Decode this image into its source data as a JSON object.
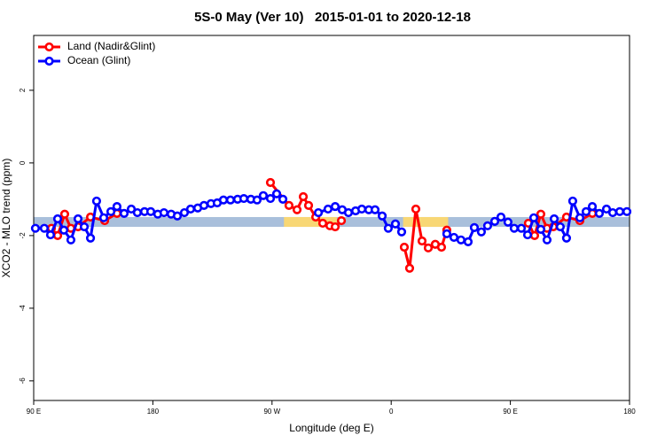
{
  "chart_data": {
    "type": "line",
    "title": "5S-0 May (Ver 10)   2015-01-01 to 2020-12-18",
    "x_label": "Longitude (deg E)",
    "y_label": "XCO2 - MLO trend (ppm)",
    "xlim": [
      90,
      540
    ],
    "ylim": [
      -6.54,
      3.51
    ],
    "xticks": [
      {
        "value": 90,
        "label": "90 E"
      },
      {
        "value": 180,
        "label": "180"
      },
      {
        "value": 270,
        "label": "90 W"
      },
      {
        "value": 360,
        "label": "0"
      },
      {
        "value": 450,
        "label": "90 E"
      },
      {
        "value": 540,
        "label": "180"
      }
    ],
    "yticks": [
      -6,
      -4,
      -2,
      0,
      2
    ],
    "legend": "top-left",
    "band": {
      "ylim": [
        -1.76,
        -1.49
      ],
      "segments": [
        {
          "x": [
            90,
            540
          ],
          "color": "#a9bfdb"
        },
        {
          "x": [
            279,
            319
          ],
          "color": "#f8d775"
        },
        {
          "x": [
            369,
            403
          ],
          "color": "#f8d775"
        }
      ]
    },
    "series": [
      {
        "name": "Land (Nadir&Glint)",
        "color": "#ff0000",
        "x": [
          103.4,
          108.1,
          113.4,
          118.1,
          123.5,
          132.9,
          143.6,
          152.9,
          200,
          268.8,
          282.8,
          288.9,
          293.6,
          297.6,
          303,
          308.3,
          313.7,
          317.7,
          322.4,
          345,
          369.9,
          373.9,
          378.6,
          383.3,
          388,
          393.3,
          398,
          402,
          430,
          463.6,
          468.3,
          473,
          477.7,
          482.4,
          492.4,
          502.5,
          511.9
        ],
        "values": [
          -1.8,
          -2.0,
          -1.41,
          -1.8,
          -1.76,
          -1.49,
          -1.59,
          -1.39,
          null,
          -0.54,
          -1.17,
          -1.29,
          -0.93,
          -1.17,
          -1.49,
          -1.66,
          -1.73,
          -1.76,
          -1.59,
          null,
          -2.32,
          -2.9,
          -1.27,
          -2.15,
          -2.34,
          -2.24,
          -2.32,
          -1.85,
          null,
          -1.66,
          -2.0,
          -1.41,
          -1.8,
          -1.76,
          -1.49,
          -1.59,
          -1.39
        ]
      },
      {
        "name": "Ocean (Glint)",
        "color": "#0000ff",
        "x": [
          91.3,
          98,
          102.7,
          108.1,
          112.8,
          118.1,
          123.5,
          128.2,
          132.9,
          137.5,
          142.9,
          148.3,
          152.9,
          158.3,
          163.7,
          168.3,
          173.7,
          178.4,
          183.7,
          188.4,
          193.8,
          198.5,
          203.8,
          208.5,
          213.9,
          218.6,
          223.9,
          228.6,
          233.3,
          238.6,
          244,
          248.7,
          254,
          258.7,
          263.4,
          268.8,
          273.5,
          278.2,
          291,
          305,
          312.3,
          317.7,
          323,
          327.7,
          333.1,
          337.8,
          343.1,
          347.8,
          353.2,
          357.8,
          363.2,
          367.9,
          385,
          402,
          407.4,
          412.7,
          418.1,
          422.8,
          428.1,
          432.8,
          438.2,
          442.9,
          448.2,
          452.9,
          458.3,
          463,
          467.7,
          473,
          477.7,
          483.1,
          487.7,
          492.4,
          497.1,
          502.5,
          507.2,
          511.9,
          517.2,
          522.6,
          527.3,
          532.6,
          538
        ],
        "values": [
          -1.8,
          -1.8,
          -1.98,
          -1.54,
          -1.85,
          -2.12,
          -1.54,
          -1.76,
          -2.07,
          -1.05,
          -1.51,
          -1.34,
          -1.2,
          -1.39,
          -1.27,
          -1.37,
          -1.34,
          -1.34,
          -1.41,
          -1.37,
          -1.41,
          -1.46,
          -1.37,
          -1.27,
          -1.24,
          -1.17,
          -1.12,
          -1.1,
          -1.02,
          -1.02,
          -1.0,
          -0.98,
          -1.0,
          -1.02,
          -0.9,
          -0.98,
          -0.85,
          -1.0,
          null,
          -1.37,
          -1.27,
          -1.2,
          -1.29,
          -1.37,
          -1.32,
          -1.27,
          -1.29,
          -1.29,
          -1.46,
          -1.8,
          -1.68,
          -1.9,
          null,
          -1.95,
          -2.05,
          -2.12,
          -2.17,
          -1.78,
          -1.9,
          -1.73,
          -1.61,
          -1.49,
          -1.63,
          -1.8,
          -1.8,
          -1.98,
          -1.51,
          -1.83,
          -2.12,
          -1.54,
          -1.76,
          -2.07,
          -1.05,
          -1.51,
          -1.34,
          -1.2,
          -1.39,
          -1.27,
          -1.37,
          -1.34,
          -1.34
        ]
      }
    ]
  }
}
